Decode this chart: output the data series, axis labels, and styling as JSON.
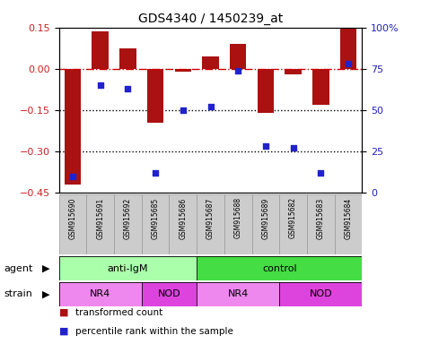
{
  "title": "GDS4340 / 1450239_at",
  "samples": [
    "GSM915690",
    "GSM915691",
    "GSM915692",
    "GSM915685",
    "GSM915686",
    "GSM915687",
    "GSM915688",
    "GSM915689",
    "GSM915682",
    "GSM915683",
    "GSM915684"
  ],
  "bar_values": [
    -0.42,
    0.135,
    0.075,
    -0.195,
    -0.01,
    0.045,
    0.09,
    -0.16,
    -0.02,
    -0.13,
    0.145
  ],
  "percentile_values": [
    10,
    65,
    63,
    12,
    50,
    52,
    74,
    28,
    27,
    12,
    78
  ],
  "bar_color": "#AA1111",
  "dot_color": "#2222CC",
  "dashed_line_color": "#CC0000",
  "dotted_line_color": "#000000",
  "ylim_left": [
    -0.45,
    0.15
  ],
  "ylim_right": [
    0,
    100
  ],
  "yticks_left": [
    -0.45,
    -0.3,
    -0.15,
    0.0,
    0.15
  ],
  "yticks_right": [
    0,
    25,
    50,
    75,
    100
  ],
  "ytick_labels_right": [
    "0",
    "25",
    "50",
    "75",
    "100%"
  ],
  "agent_labels": [
    {
      "text": "anti-IgM",
      "start": 0,
      "end": 4,
      "color": "#AAFFAA"
    },
    {
      "text": "control",
      "start": 5,
      "end": 10,
      "color": "#44DD44"
    }
  ],
  "strain_labels": [
    {
      "text": "NR4",
      "start": 0,
      "end": 2,
      "color": "#EE88EE"
    },
    {
      "text": "NOD",
      "start": 3,
      "end": 4,
      "color": "#DD44DD"
    },
    {
      "text": "NR4",
      "start": 5,
      "end": 7,
      "color": "#EE88EE"
    },
    {
      "text": "NOD",
      "start": 8,
      "end": 10,
      "color": "#DD44DD"
    }
  ],
  "legend_bar_label": "transformed count",
  "legend_dot_label": "percentile rank within the sample",
  "bar_width": 0.6,
  "background_color": "#FFFFFF",
  "plot_bg_color": "#FFFFFF",
  "tick_label_color_left": "#CC2222",
  "tick_label_color_right": "#2222BB",
  "agent_row_label": "agent",
  "strain_row_label": "strain",
  "sample_box_color": "#CCCCCC",
  "sample_box_edge_color": "#999999"
}
